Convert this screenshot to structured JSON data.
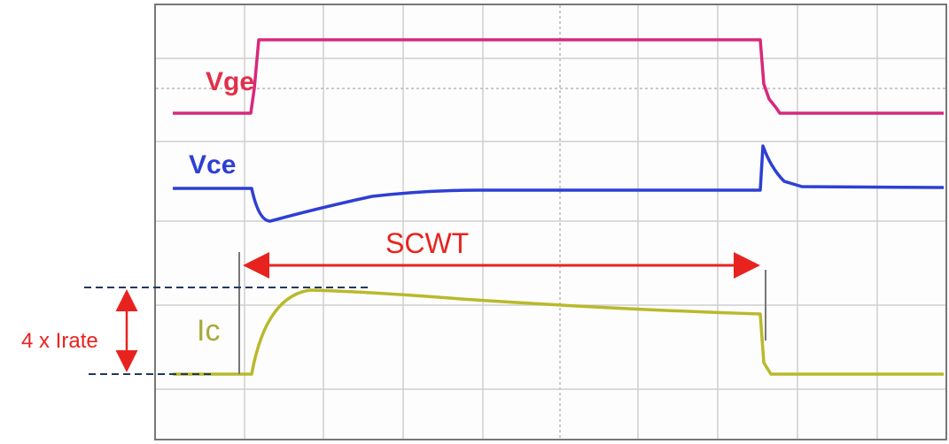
{
  "signals": {
    "vge": "Vge",
    "vce": "Vce",
    "ic": "Ic"
  },
  "annotations": {
    "duration": "SCWT",
    "current": "4 x Irate"
  }
}
